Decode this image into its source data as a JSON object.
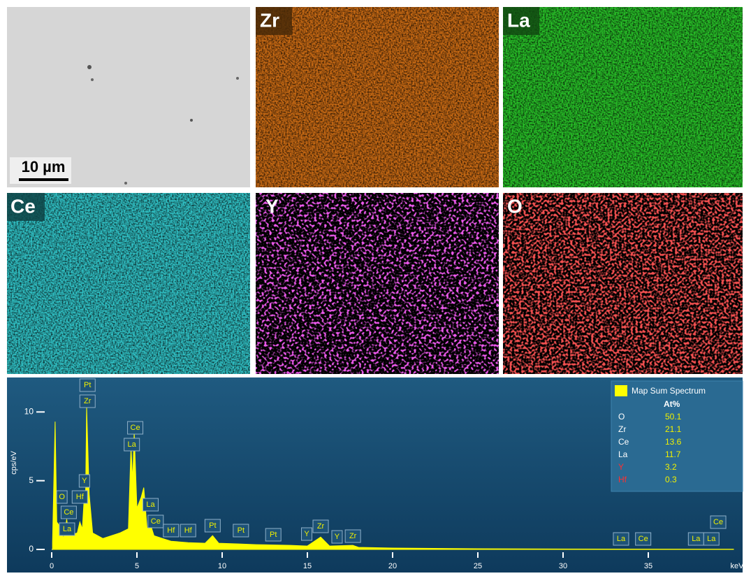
{
  "maps": [
    {
      "scale_bar": "10 µm"
    },
    {
      "label": "Zr"
    },
    {
      "label": "La"
    },
    {
      "label": "Ce"
    },
    {
      "label": "Y"
    },
    {
      "label": "O"
    }
  ],
  "chart_data": {
    "type": "line",
    "y_label": "cps/eV",
    "x_label": "keV",
    "color": "#ffff00",
    "xlim": [
      0,
      40
    ],
    "ylim": [
      0,
      12
    ],
    "xticks": [
      0,
      5,
      10,
      15,
      20,
      25,
      30,
      35
    ],
    "yticks": [
      0,
      5,
      10
    ],
    "x": [
      0.05,
      0.2,
      0.3,
      0.52,
      0.7,
      0.88,
      1.0,
      1.5,
      1.65,
      1.8,
      1.92,
      1.98,
      2.05,
      2.2,
      2.4,
      3.0,
      4.0,
      4.5,
      4.65,
      4.75,
      4.84,
      5.0,
      5.25,
      5.4,
      5.6,
      5.8,
      6.0,
      6.5,
      7.0,
      8.0,
      9.0,
      9.44,
      9.8,
      11.0,
      12.0,
      14.0,
      15.0,
      15.78,
      16.3,
      17.67,
      18.0,
      20.0,
      25.0,
      30.0,
      40.0
    ],
    "values": [
      0.5,
      9.3,
      2.0,
      1.6,
      0.8,
      2.2,
      1.0,
      1.2,
      2.0,
      1.5,
      4.0,
      3.0,
      10.4,
      4.0,
      1.2,
      0.8,
      1.2,
      1.5,
      7.5,
      5.0,
      8.5,
      3.0,
      3.8,
      4.5,
      1.5,
      1.8,
      1.0,
      0.8,
      0.6,
      0.5,
      0.45,
      1.0,
      0.45,
      0.4,
      0.35,
      0.3,
      0.25,
      0.9,
      0.25,
      0.3,
      0.15,
      0.1,
      0.05,
      0.03,
      0.02
    ],
    "peaks": [
      {
        "text": "Pt",
        "x": 2.1
      },
      {
        "text": "Zr",
        "x": 2.1
      },
      {
        "text": "Ce",
        "x": 4.9
      },
      {
        "text": "La",
        "x": 4.7
      },
      {
        "text": "O",
        "x": 0.6
      },
      {
        "text": "Ce",
        "x": 1.0
      },
      {
        "text": "La",
        "x": 0.9
      },
      {
        "text": "Hf",
        "x": 1.65
      },
      {
        "text": "Y",
        "x": 1.92
      },
      {
        "text": "La",
        "x": 5.8
      },
      {
        "text": "Ce",
        "x": 6.1
      },
      {
        "text": "Hf",
        "x": 7.0
      },
      {
        "text": "Hf",
        "x": 8.0
      },
      {
        "text": "Pt",
        "x": 9.44
      },
      {
        "text": "Pt",
        "x": 11.1
      },
      {
        "text": "Pt",
        "x": 13.0
      },
      {
        "text": "Y",
        "x": 14.96
      },
      {
        "text": "Zr",
        "x": 15.78
      },
      {
        "text": "Y",
        "x": 16.74
      },
      {
        "text": "Zr",
        "x": 17.67
      },
      {
        "text": "La",
        "x": 33.4
      },
      {
        "text": "Ce",
        "x": 34.7
      },
      {
        "text": "La",
        "x": 37.8
      },
      {
        "text": "La",
        "x": 38.7
      },
      {
        "text": "Ce",
        "x": 39.1
      }
    ],
    "legend": {
      "title": "Map Sum Spectrum",
      "header": "At%",
      "rows": [
        {
          "element": "O",
          "value": 50.1,
          "color": "#ffffff"
        },
        {
          "element": "Zr",
          "value": 21.1,
          "color": "#ffffff"
        },
        {
          "element": "Ce",
          "value": 13.6,
          "color": "#ffffff"
        },
        {
          "element": "La",
          "value": 11.7,
          "color": "#ffffff"
        },
        {
          "element": "Y",
          "value": 3.2,
          "color": "#ff3030"
        },
        {
          "element": "Hf",
          "value": 0.3,
          "color": "#ff3030"
        }
      ]
    }
  }
}
